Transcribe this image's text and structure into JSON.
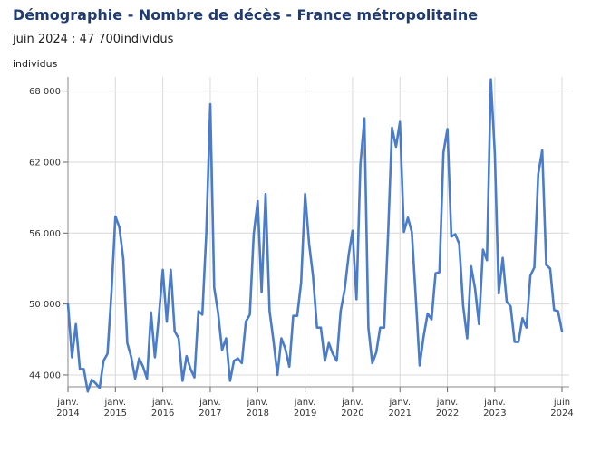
{
  "header": {
    "title": "Démographie - Nombre de décès - France métropolitaine",
    "latest_period": "juin 2024",
    "latest_separator": " : ",
    "latest_value": "47 700",
    "latest_unit": "individus"
  },
  "colors": {
    "title": "#1f3b6f",
    "line": "#4a7cc9",
    "grid": "#d9d9d9"
  },
  "chart_data": {
    "type": "line",
    "title": "Démographie - Nombre de décès - France métropolitaine",
    "ylabel": "individus",
    "xlabel": "",
    "ylim": [
      43000,
      69200
    ],
    "grid": true,
    "yticks": [
      44000,
      50000,
      56000,
      62000,
      68000
    ],
    "ytick_labels": [
      "44 000",
      "50 000",
      "56 000",
      "62 000",
      "68 000"
    ],
    "xticks": [
      {
        "date": "2014-01",
        "line1": "janv.",
        "line2": "2014"
      },
      {
        "date": "2015-01",
        "line1": "janv.",
        "line2": "2015"
      },
      {
        "date": "2016-01",
        "line1": "janv.",
        "line2": "2016"
      },
      {
        "date": "2017-01",
        "line1": "janv.",
        "line2": "2017"
      },
      {
        "date": "2018-01",
        "line1": "janv.",
        "line2": "2018"
      },
      {
        "date": "2019-01",
        "line1": "janv.",
        "line2": "2019"
      },
      {
        "date": "2020-01",
        "line1": "janv.",
        "line2": "2020"
      },
      {
        "date": "2021-01",
        "line1": "janv.",
        "line2": "2021"
      },
      {
        "date": "2022-01",
        "line1": "janv.",
        "line2": "2022"
      },
      {
        "date": "2023-01",
        "line1": "janv.",
        "line2": "2023"
      },
      {
        "date": "2024-06",
        "line1": "juin",
        "line2": "2024"
      }
    ],
    "series": [
      {
        "start": "2014-01",
        "values": [
          50000,
          45500,
          48300,
          44500,
          44500,
          42600,
          43600,
          43300,
          42900,
          45200,
          45800,
          51000,
          57400,
          56500,
          53800,
          46700,
          45500,
          43700,
          45400,
          44700,
          43700,
          49300,
          45500,
          49000,
          52900,
          48500,
          52900,
          47700,
          47100,
          43500,
          45600,
          44500,
          43800,
          49400,
          49100,
          56000,
          66900,
          51400,
          49200,
          46100,
          47100,
          43500,
          45200,
          45400,
          45000,
          48500,
          49100,
          55900,
          58700,
          51000,
          59300,
          49400,
          46900,
          44000,
          47100,
          46200,
          44700,
          49000,
          49000,
          51800,
          59300,
          55100,
          52400,
          48000,
          48000,
          45200,
          46700,
          45800,
          45200,
          49400,
          51200,
          54100,
          56200,
          50400,
          61800,
          65700,
          48000,
          45000,
          45900,
          48000,
          48000,
          56000,
          64900,
          63300,
          65400,
          56100,
          57300,
          56100,
          50500,
          44800,
          47300,
          49200,
          48700,
          52600,
          52700,
          62800,
          64800,
          55700,
          55900,
          55100,
          49800,
          47100,
          53200,
          51300,
          48300,
          54600,
          53700,
          69000,
          62700,
          50900,
          53900,
          50200,
          49800,
          46800,
          46800,
          48800,
          48000,
          52400,
          53100,
          61000,
          63000,
          53300,
          53000,
          49500,
          49400,
          47700
        ]
      }
    ]
  }
}
